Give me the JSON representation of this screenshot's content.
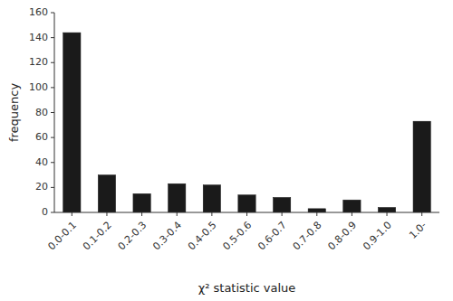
{
  "chart_data": {
    "type": "bar",
    "categories": [
      "0.0-0.1",
      "0.1-0.2",
      "0.2-0.3",
      "0.3-0.4",
      "0.4-0.5",
      "0.5-0.6",
      "0.6-0.7",
      "0.7-0.8",
      "0.8-0.9",
      "0.9-1.0",
      "1.0-"
    ],
    "values": [
      144,
      30,
      15,
      23,
      22,
      14,
      12,
      3,
      10,
      4,
      73
    ],
    "color": "#1a1a1a",
    "xlabel": "χ² statistic value",
    "ylabel": "frequency",
    "ylim": [
      0,
      160
    ],
    "yticks": [
      0,
      20,
      40,
      60,
      80,
      100,
      120,
      140,
      160
    ]
  }
}
